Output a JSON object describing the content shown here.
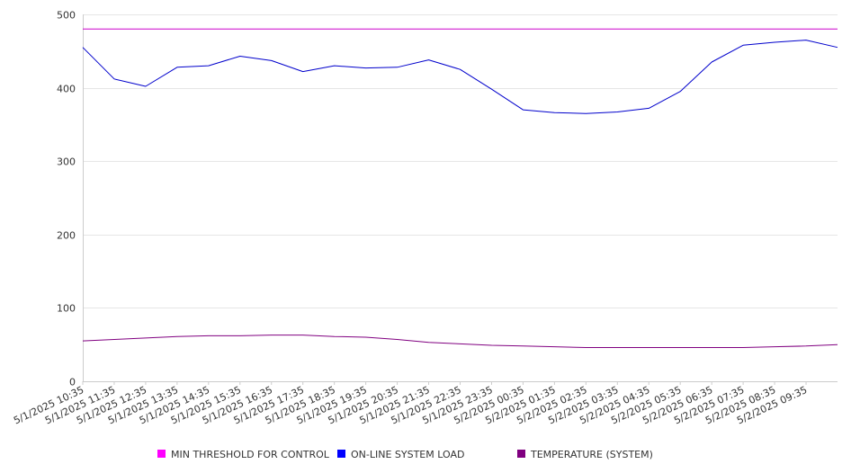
{
  "chart_data": {
    "type": "line",
    "title": "",
    "xlabel": "",
    "ylabel": "",
    "ylim": [
      0,
      500
    ],
    "y_ticks": [
      0,
      100,
      200,
      300,
      400,
      500
    ],
    "x_tick_labels": [
      "5/1/2025 10:35",
      "5/1/2025 11:35",
      "5/1/2025 12:35",
      "5/1/2025 13:35",
      "5/1/2025 14:35",
      "5/1/2025 15:35",
      "5/1/2025 16:35",
      "5/1/2025 17:35",
      "5/1/2025 18:35",
      "5/1/2025 19:35",
      "5/1/2025 20:35",
      "5/1/2025 21:35",
      "5/1/2025 22:35",
      "5/1/2025 23:35",
      "5/2/2025 00:35",
      "5/2/2025 01:35",
      "5/2/2025 02:35",
      "5/2/2025 03:35",
      "5/2/2025 04:35",
      "5/2/2025 05:35",
      "5/2/2025 06:35",
      "5/2/2025 07:35",
      "5/2/2025 08:35",
      "5/2/2025 09:35"
    ],
    "grid": true,
    "legend_position": "bottom",
    "series": [
      {
        "name": "MIN THRESHOLD FOR CONTROL",
        "color": "#cc00cc",
        "legend_color": "#ff00ff",
        "values": [
          480,
          480,
          480,
          480,
          480,
          480,
          480,
          480,
          480,
          480,
          480,
          480,
          480,
          480,
          480,
          480,
          480,
          480,
          480,
          480,
          480,
          480,
          480,
          480,
          480
        ]
      },
      {
        "name": "ON-LINE SYSTEM LOAD",
        "color": "#0000cc",
        "legend_color": "#0000ff",
        "values": [
          455,
          412,
          402,
          428,
          430,
          443,
          437,
          422,
          430,
          427,
          428,
          438,
          425,
          398,
          370,
          366,
          365,
          367,
          372,
          395,
          435,
          458,
          462,
          465,
          455
        ]
      },
      {
        "name": "TEMPERATURE (SYSTEM)",
        "color": "#800080",
        "legend_color": "#800080",
        "values": [
          55,
          57,
          59,
          61,
          62,
          62,
          63,
          63,
          61,
          60,
          57,
          53,
          51,
          49,
          48,
          47,
          46,
          46,
          46,
          46,
          46,
          46,
          47,
          48,
          50
        ]
      }
    ]
  }
}
